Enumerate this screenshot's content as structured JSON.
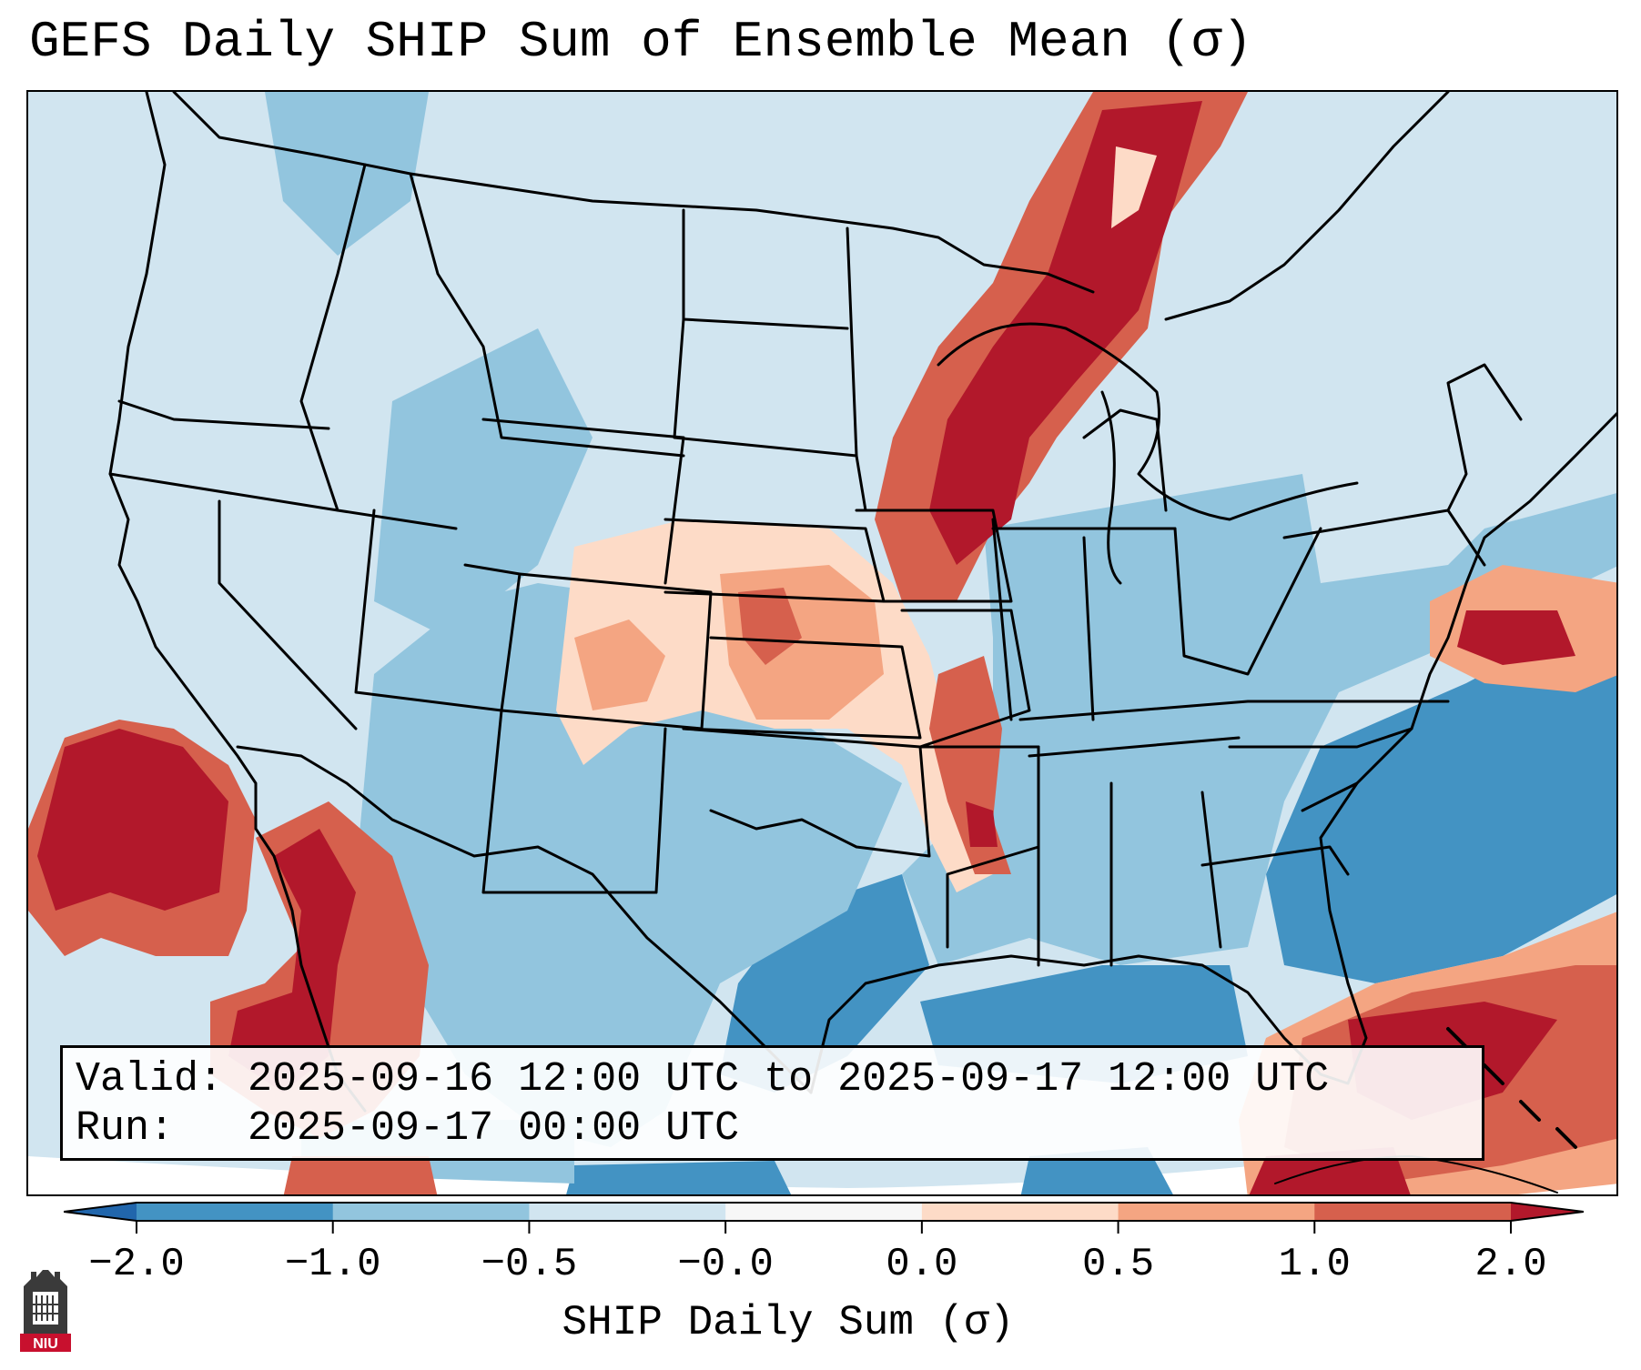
{
  "title": "GEFS Daily SHIP Sum of Ensemble Mean (σ)",
  "info": {
    "valid_line": "Valid: 2025-09-16 12:00 UTC to 2025-09-17 12:00 UTC",
    "run_line": "Run:   2025-09-17 00:00 UTC"
  },
  "colorbar": {
    "label": "SHIP Daily Sum (σ)",
    "ticks": [
      "−2.0",
      "−1.0",
      "−0.5",
      "−0.0",
      "0.0",
      "0.5",
      "1.0",
      "2.0"
    ],
    "colors": [
      "#4393c3",
      "#92c5de",
      "#d1e5f0",
      "#f7f7f7",
      "#fddbc7",
      "#f4a582",
      "#d6604d"
    ],
    "under_color": "#2166ac",
    "over_color": "#b2182b"
  },
  "map": {
    "region": "Contiguous United States",
    "background_color": "#d1e5f0",
    "anomaly_regions": [
      {
        "name": "Upper Midwest / Great Lakes",
        "level": "high"
      },
      {
        "name": "Central Plains",
        "level": "moderate"
      },
      {
        "name": "Eastern Pacific off Baja California",
        "level": "high"
      },
      {
        "name": "Gulf of California",
        "level": "high"
      },
      {
        "name": "Western Atlantic off Mid-Atlantic coast",
        "level": "high"
      },
      {
        "name": "Bahamas / Florida Straits",
        "level": "high"
      },
      {
        "name": "Southeast US and adjacent Atlantic",
        "level": "low"
      },
      {
        "name": "Gulf of Mexico",
        "level": "low"
      }
    ]
  },
  "logo": {
    "text": "NIU"
  }
}
